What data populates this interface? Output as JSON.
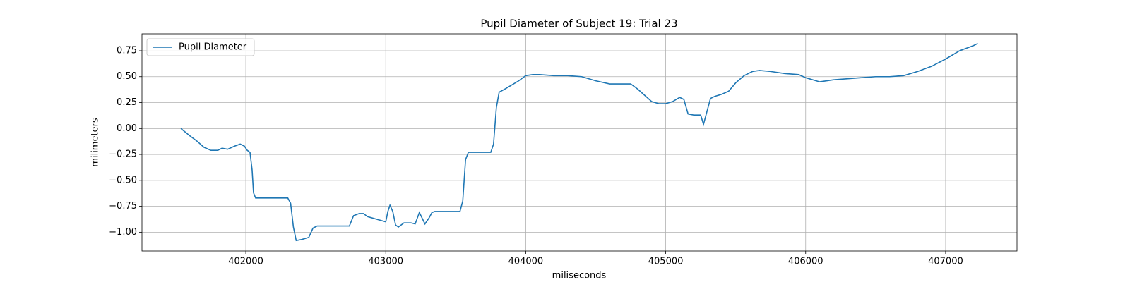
{
  "chart_data": {
    "type": "line",
    "title": "Pupil Diameter of Subject 19: Trial 23",
    "x_label": "miliseconds",
    "y_label": "milimeters",
    "x": [
      401536,
      401600,
      401650,
      401700,
      401750,
      401800,
      401830,
      401870,
      401920,
      401960,
      401990,
      402010,
      402030,
      402045,
      402055,
      402070,
      402300,
      402320,
      402340,
      402360,
      402400,
      402450,
      402480,
      402510,
      402740,
      402770,
      402810,
      402840,
      402870,
      403000,
      403015,
      403030,
      403050,
      403070,
      403090,
      403130,
      403180,
      403210,
      403240,
      403280,
      403310,
      403330,
      403350,
      403530,
      403550,
      403570,
      403590,
      403750,
      403770,
      403790,
      403810,
      403850,
      403900,
      403950,
      404000,
      404050,
      404100,
      404200,
      404300,
      404400,
      404500,
      404600,
      404700,
      404750,
      404800,
      404850,
      404900,
      404950,
      405000,
      405050,
      405100,
      405130,
      405160,
      405200,
      405250,
      405270,
      405290,
      405320,
      405350,
      405400,
      405450,
      405500,
      405560,
      405620,
      405670,
      405750,
      405850,
      405950,
      406000,
      406100,
      406200,
      406300,
      406400,
      406500,
      406600,
      406700,
      406800,
      406900,
      407000,
      407100,
      407200,
      407230
    ],
    "series": [
      {
        "name": "Pupil Diameter",
        "color": "#1f77b4",
        "values": [
          0.0,
          -0.07,
          -0.12,
          -0.18,
          -0.21,
          -0.21,
          -0.19,
          -0.2,
          -0.17,
          -0.15,
          -0.17,
          -0.21,
          -0.23,
          -0.4,
          -0.62,
          -0.67,
          -0.67,
          -0.72,
          -0.95,
          -1.08,
          -1.07,
          -1.05,
          -0.96,
          -0.94,
          -0.94,
          -0.84,
          -0.82,
          -0.82,
          -0.85,
          -0.9,
          -0.8,
          -0.74,
          -0.8,
          -0.93,
          -0.95,
          -0.91,
          -0.91,
          -0.92,
          -0.81,
          -0.92,
          -0.86,
          -0.81,
          -0.8,
          -0.8,
          -0.7,
          -0.3,
          -0.23,
          -0.23,
          -0.15,
          0.2,
          0.35,
          0.38,
          0.42,
          0.46,
          0.51,
          0.52,
          0.52,
          0.51,
          0.51,
          0.5,
          0.46,
          0.43,
          0.43,
          0.43,
          0.38,
          0.32,
          0.26,
          0.24,
          0.24,
          0.26,
          0.3,
          0.28,
          0.14,
          0.13,
          0.13,
          0.04,
          0.14,
          0.29,
          0.31,
          0.33,
          0.36,
          0.44,
          0.51,
          0.55,
          0.56,
          0.55,
          0.53,
          0.52,
          0.49,
          0.45,
          0.47,
          0.48,
          0.49,
          0.5,
          0.5,
          0.51,
          0.55,
          0.6,
          0.67,
          0.75,
          0.8,
          0.82
        ]
      }
    ],
    "xlim": [
      401258,
      407510
    ],
    "ylim": [
      -1.181,
      0.913
    ],
    "xticks": [
      402000,
      403000,
      404000,
      405000,
      406000,
      407000
    ],
    "yticks": [
      {
        "value": -1.0,
        "label": "−1.00"
      },
      {
        "value": -0.75,
        "label": "−0.75"
      },
      {
        "value": -0.5,
        "label": "−0.50"
      },
      {
        "value": -0.25,
        "label": "−0.25"
      },
      {
        "value": 0,
        "label": "0.00"
      },
      {
        "value": 0.25,
        "label": "0.25"
      },
      {
        "value": 0.5,
        "label": "0.50"
      },
      {
        "value": 0.75,
        "label": "0.75"
      }
    ],
    "grid": true,
    "legend": "upper left"
  }
}
